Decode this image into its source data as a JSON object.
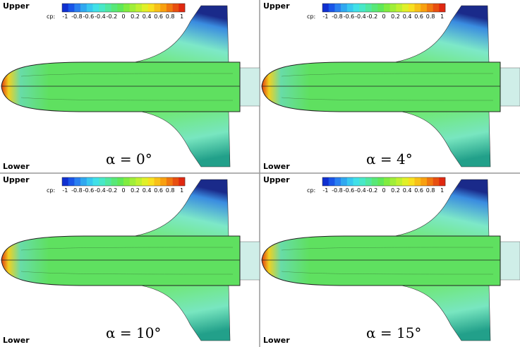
{
  "panels": [
    {
      "upper_label": "Upper",
      "lower_label": "Lower",
      "colorbar": {
        "label": "cp:",
        "ticks": [
          -1,
          -0.8,
          -0.6,
          -0.4,
          -0.2,
          0,
          0.2,
          0.4,
          0.6,
          0.8,
          1
        ]
      },
      "angle_label": "α = 0°"
    },
    {
      "upper_label": "Upper",
      "lower_label": "Lower",
      "colorbar": {
        "label": "cp:",
        "ticks": [
          -1,
          -0.8,
          -0.6,
          -0.4,
          -0.2,
          0,
          0.2,
          0.4,
          0.6,
          0.8,
          1
        ]
      },
      "angle_label": "α = 4°"
    },
    {
      "upper_label": "Upper",
      "lower_label": "Lower",
      "colorbar": {
        "label": "cp:",
        "ticks": [
          -1,
          -0.8,
          -0.6,
          -0.4,
          -0.2,
          0,
          0.2,
          0.4,
          0.6,
          0.8,
          1
        ]
      },
      "angle_label": "α = 10°"
    },
    {
      "upper_label": "Upper",
      "lower_label": "Lower",
      "colorbar": {
        "label": "cp:",
        "ticks": [
          -1,
          -0.8,
          -0.6,
          -0.4,
          -0.2,
          0,
          0.2,
          0.4,
          0.6,
          0.8,
          1
        ]
      },
      "angle_label": "α = 15°"
    }
  ]
}
